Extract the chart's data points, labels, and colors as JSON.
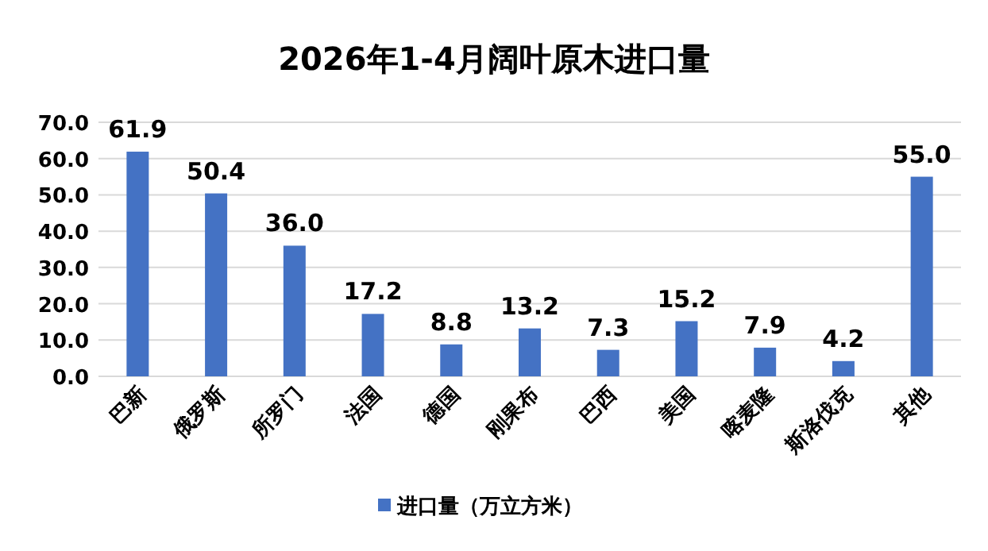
{
  "chart_data": {
    "type": "bar",
    "title": "2026年1-4月阔叶原木进口量",
    "categories": [
      "巴新",
      "俄罗斯",
      "所罗门",
      "法国",
      "德国",
      "刚果布",
      "巴西",
      "美国",
      "喀麦隆",
      "斯洛伐克",
      "其他"
    ],
    "series": [
      {
        "name": "进口量（万立方米）",
        "color": "#4472c4",
        "values": [
          61.9,
          50.4,
          36.0,
          17.2,
          8.8,
          13.2,
          7.3,
          15.2,
          7.9,
          4.2,
          55.0
        ],
        "value_labels": [
          "61.9",
          "50.4",
          "36.0",
          "17.2",
          "8.8",
          "13.2",
          "7.3",
          "15.2",
          "7.9",
          "4.2",
          "55.0"
        ]
      }
    ],
    "ylim": [
      0,
      70
    ],
    "yticks": [
      {
        "value": 0,
        "label": "0.0"
      },
      {
        "value": 10,
        "label": "10.0"
      },
      {
        "value": 20,
        "label": "20.0"
      },
      {
        "value": 30,
        "label": "30.0"
      },
      {
        "value": 40,
        "label": "40.0"
      },
      {
        "value": 50,
        "label": "50.0"
      },
      {
        "value": 60,
        "label": "60.0"
      },
      {
        "value": 70,
        "label": "70.0"
      }
    ],
    "grid": "y",
    "legend": "bottom"
  }
}
